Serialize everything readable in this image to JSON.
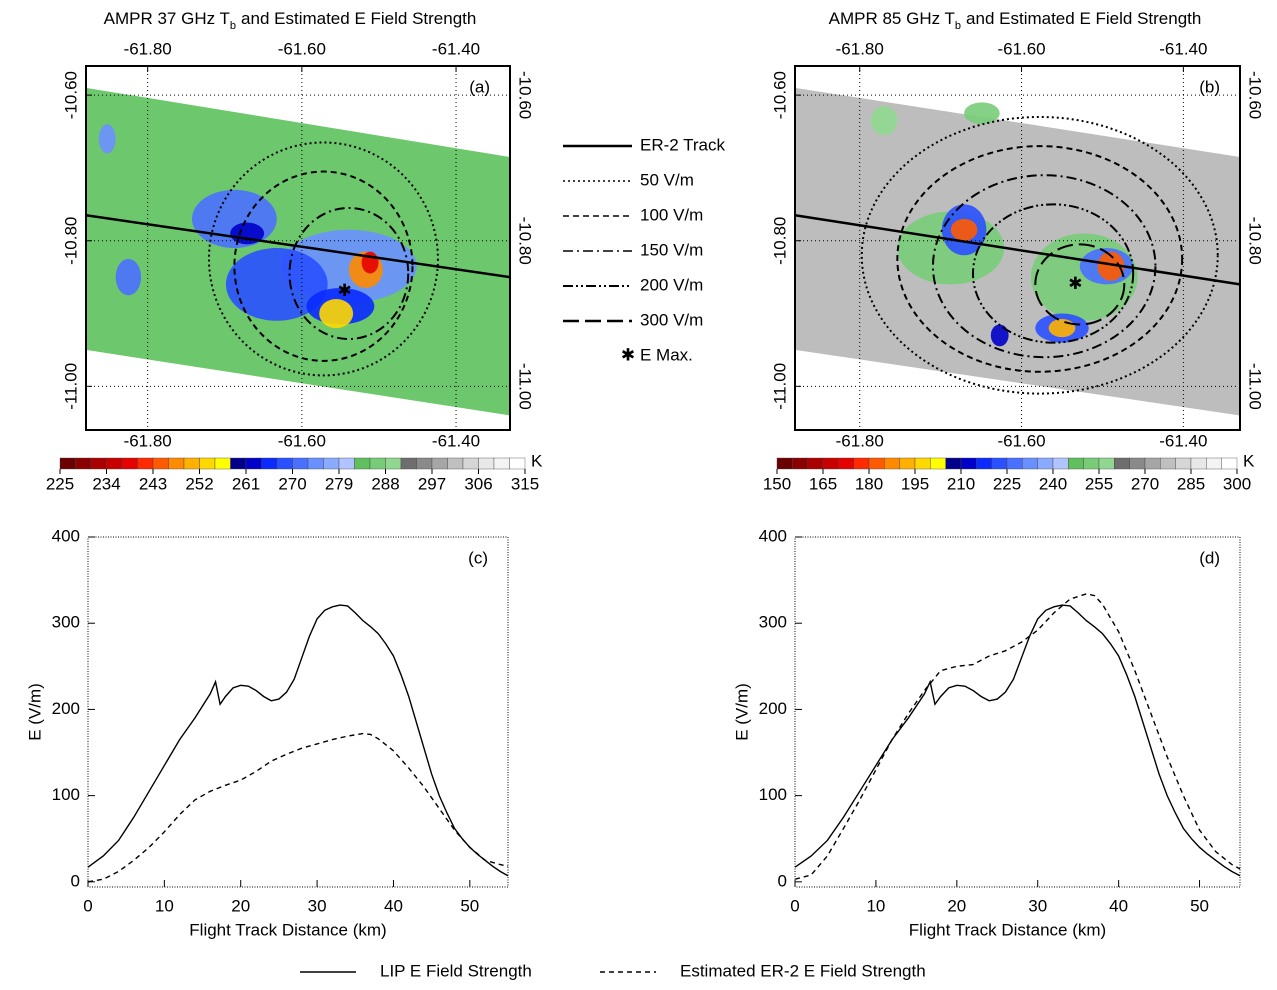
{
  "chart_data": [
    {
      "type": "map",
      "title": "AMPR 37 GHz T",
      "title_subscript": "b",
      "title_rest": "and Estimated E Field Strength",
      "panel_label": "(a)",
      "xlim": [
        -61.88,
        -61.33
      ],
      "xticks": [
        {
          "value": -61.8,
          "label": "-61.80"
        },
        {
          "value": -61.6,
          "label": "-61.60"
        },
        {
          "value": -61.4,
          "label": "-61.40"
        }
      ],
      "ylim": [
        -11.06,
        -10.56
      ],
      "yticks": [
        {
          "value": -10.6,
          "label": "-10.60"
        },
        {
          "value": -10.8,
          "label": "-10.80"
        },
        {
          "value": -11.0,
          "label": "-11.00"
        }
      ],
      "grid": true,
      "cbar_lim": [
        225,
        315
      ],
      "cbar_ticks": [
        225,
        234,
        243,
        252,
        261,
        270,
        279,
        288,
        297,
        306,
        315
      ],
      "cbar_unit": "K",
      "cbar_colors": [
        "#6b0000",
        "#8b0000",
        "#aa0000",
        "#c80000",
        "#e60000",
        "#ff2a00",
        "#ff5a00",
        "#ff8a00",
        "#ffb000",
        "#ffd800",
        "#ffff00",
        "#00008b",
        "#0000c8",
        "#0a2aff",
        "#2a50ff",
        "#4a70ff",
        "#6a90ff",
        "#8aaaff",
        "#b0c4ff",
        "#60c060",
        "#78cc78",
        "#90d890",
        "#6e6e6e",
        "#8a8a8a",
        "#a6a6a6",
        "#c0c0c0",
        "#d6d6d6",
        "#e8e8e8",
        "#f4f4f4",
        "#ffffff"
      ]
    },
    {
      "type": "map",
      "title": "AMPR 85 GHz T",
      "title_subscript": "b",
      "title_rest": "and Estimated E Field Strength",
      "panel_label": "(b)",
      "xlim": [
        -61.88,
        -61.33
      ],
      "xticks": [
        {
          "value": -61.8,
          "label": "-61.80"
        },
        {
          "value": -61.6,
          "label": "-61.60"
        },
        {
          "value": -61.4,
          "label": "-61.40"
        }
      ],
      "ylim": [
        -11.06,
        -10.56
      ],
      "yticks": [
        {
          "value": -10.6,
          "label": "-10.60"
        },
        {
          "value": -10.8,
          "label": "-10.80"
        },
        {
          "value": -11.0,
          "label": "-11.00"
        }
      ],
      "grid": true,
      "cbar_lim": [
        150,
        300
      ],
      "cbar_ticks": [
        150,
        165,
        180,
        195,
        210,
        225,
        240,
        255,
        270,
        285,
        300
      ],
      "cbar_unit": "K",
      "cbar_colors": [
        "#6b0000",
        "#8b0000",
        "#aa0000",
        "#c80000",
        "#e60000",
        "#ff2a00",
        "#ff5a00",
        "#ff8a00",
        "#ffb000",
        "#ffd800",
        "#ffff00",
        "#00008b",
        "#0000c8",
        "#0a2aff",
        "#2a50ff",
        "#4a70ff",
        "#6a90ff",
        "#8aaaff",
        "#b0c4ff",
        "#60c060",
        "#78cc78",
        "#90d890",
        "#6e6e6e",
        "#8a8a8a",
        "#a6a6a6",
        "#c0c0c0",
        "#d6d6d6",
        "#e8e8e8",
        "#f4f4f4",
        "#ffffff"
      ],
      "legend": [
        "ER-2 Track",
        "50 V/m",
        "100 V/m",
        "150 V/m",
        "200 V/m",
        "300 V/m",
        "E Max."
      ]
    },
    {
      "type": "line",
      "panel_label": "(c)",
      "x_label": "Flight Track Distance (km)",
      "y_label": "E (V/m)",
      "xlim": [
        0,
        55
      ],
      "xticks": [
        0,
        10,
        20,
        30,
        40,
        50
      ],
      "ylim": [
        -6,
        400
      ],
      "yticks": [
        0,
        100,
        200,
        300,
        400
      ],
      "series": [
        {
          "name": "LIP E Field Strength",
          "color": "#000000",
          "style": "solid",
          "x": [
            0,
            2,
            4,
            6,
            8,
            10,
            12,
            14,
            16,
            16.7,
            17.3,
            18,
            19,
            20,
            21,
            22,
            23,
            24,
            25,
            26,
            27,
            28,
            29,
            30,
            31,
            32,
            33,
            34,
            35,
            36,
            37,
            38,
            39,
            40,
            41,
            42,
            43,
            44,
            45,
            46,
            47,
            48,
            49,
            50,
            51,
            52,
            53,
            54,
            55
          ],
          "values": [
            17,
            30,
            48,
            75,
            105,
            135,
            165,
            190,
            218,
            232,
            206,
            215,
            225,
            228,
            227,
            222,
            215,
            210,
            212,
            220,
            235,
            260,
            285,
            305,
            315,
            319,
            321,
            320,
            312,
            303,
            296,
            288,
            276,
            262,
            240,
            215,
            185,
            155,
            125,
            100,
            80,
            62,
            50,
            40,
            32,
            25,
            18,
            12,
            7
          ]
        },
        {
          "name": "Estimated ER-2 E Field Strength",
          "color": "#000000",
          "style": "dashed",
          "x": [
            0,
            2,
            4,
            6,
            8,
            10,
            12,
            14,
            16,
            18,
            20,
            22,
            24,
            26,
            28,
            30,
            32,
            34,
            36,
            37,
            38,
            40,
            42,
            44,
            46,
            48,
            50,
            52,
            54,
            55
          ],
          "values": [
            0,
            3,
            12,
            25,
            40,
            58,
            78,
            95,
            105,
            112,
            118,
            128,
            140,
            148,
            155,
            160,
            165,
            169,
            172,
            171,
            166,
            152,
            132,
            110,
            85,
            60,
            40,
            25,
            20,
            18
          ]
        }
      ]
    },
    {
      "type": "line",
      "panel_label": "(d)",
      "x_label": "Flight Track Distance (km)",
      "y_label": "E (V/m)",
      "xlim": [
        0,
        55
      ],
      "xticks": [
        0,
        10,
        20,
        30,
        40,
        50
      ],
      "ylim": [
        -6,
        400
      ],
      "yticks": [
        0,
        100,
        200,
        300,
        400
      ],
      "series": [
        {
          "color": "#000000",
          "style": "solid",
          "x": [
            0,
            2,
            4,
            6,
            8,
            10,
            12,
            14,
            16,
            16.7,
            17.3,
            18,
            19,
            20,
            21,
            22,
            23,
            24,
            25,
            26,
            27,
            28,
            29,
            30,
            31,
            32,
            33,
            34,
            35,
            36,
            37,
            38,
            39,
            40,
            41,
            42,
            43,
            44,
            45,
            46,
            47,
            48,
            49,
            50,
            51,
            52,
            53,
            54,
            55
          ],
          "values": [
            17,
            30,
            48,
            75,
            105,
            135,
            165,
            190,
            218,
            232,
            206,
            215,
            225,
            228,
            227,
            222,
            215,
            210,
            212,
            220,
            235,
            260,
            285,
            305,
            315,
            319,
            321,
            320,
            312,
            303,
            296,
            288,
            276,
            262,
            240,
            215,
            185,
            155,
            125,
            100,
            80,
            62,
            50,
            40,
            32,
            25,
            18,
            12,
            7
          ]
        },
        {
          "color": "#000000",
          "style": "dashed",
          "x": [
            0,
            2,
            4,
            6,
            8,
            10,
            12,
            14,
            16,
            18,
            20,
            22,
            24,
            26,
            28,
            30,
            32,
            34,
            36,
            37,
            38,
            40,
            42,
            44,
            46,
            48,
            50,
            52,
            54,
            55
          ],
          "values": [
            3,
            8,
            30,
            62,
            95,
            130,
            165,
            195,
            222,
            245,
            250,
            252,
            262,
            268,
            278,
            292,
            312,
            328,
            334,
            332,
            322,
            290,
            245,
            195,
            145,
            100,
            60,
            35,
            20,
            15
          ]
        }
      ]
    }
  ]
}
